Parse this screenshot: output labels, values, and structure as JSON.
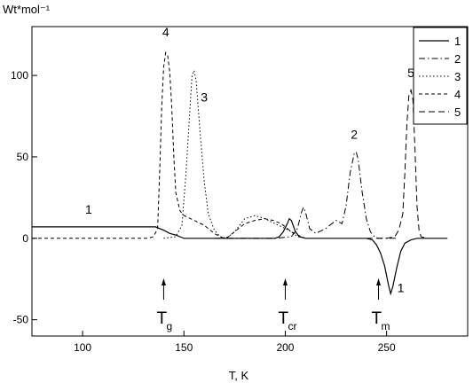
{
  "chart_data": {
    "type": "line",
    "ylabel": "Wt*mol⁻¹",
    "xlabel": "T, K",
    "xlim": [
      75,
      290
    ],
    "ylim": [
      -60,
      130
    ],
    "xticks": [
      100,
      150,
      200,
      250
    ],
    "yticks": [
      -50,
      0,
      50,
      100
    ],
    "legend_position": "top-right",
    "series": [
      {
        "name": "1",
        "style": "solid",
        "points": [
          [
            75,
            7
          ],
          [
            130,
            7
          ],
          [
            136,
            7
          ],
          [
            138,
            6
          ],
          [
            140,
            5
          ],
          [
            143,
            3
          ],
          [
            146,
            2
          ],
          [
            148,
            1
          ],
          [
            150,
            0
          ],
          [
            155,
            0
          ],
          [
            160,
            0
          ],
          [
            180,
            0
          ],
          [
            195,
            0
          ],
          [
            197,
            1
          ],
          [
            199,
            4
          ],
          [
            201,
            9
          ],
          [
            202,
            12
          ],
          [
            203,
            11
          ],
          [
            205,
            4
          ],
          [
            207,
            1
          ],
          [
            210,
            0
          ],
          [
            230,
            0
          ],
          [
            240,
            0
          ],
          [
            243,
            -1
          ],
          [
            245,
            -4
          ],
          [
            247,
            -9
          ],
          [
            249,
            -17
          ],
          [
            251,
            -29
          ],
          [
            252,
            -34
          ],
          [
            253,
            -30
          ],
          [
            255,
            -18
          ],
          [
            257,
            -8
          ],
          [
            259,
            -3
          ],
          [
            262,
            -1
          ],
          [
            265,
            0
          ],
          [
            280,
            0
          ]
        ]
      },
      {
        "name": "2",
        "style": "dashdot",
        "points": [
          [
            165,
            0
          ],
          [
            180,
            0
          ],
          [
            195,
            0
          ],
          [
            203,
            1
          ],
          [
            206,
            6
          ],
          [
            208,
            16
          ],
          [
            209,
            19
          ],
          [
            210,
            16
          ],
          [
            212,
            6
          ],
          [
            215,
            3
          ],
          [
            220,
            6
          ],
          [
            225,
            11
          ],
          [
            228,
            9
          ],
          [
            230,
            20
          ],
          [
            232,
            40
          ],
          [
            234,
            52
          ],
          [
            235,
            53
          ],
          [
            236,
            48
          ],
          [
            238,
            28
          ],
          [
            240,
            12
          ],
          [
            242,
            4
          ],
          [
            244,
            1
          ],
          [
            246,
            0
          ],
          [
            255,
            0
          ]
        ]
      },
      {
        "name": "3",
        "style": "dotted",
        "points": [
          [
            140,
            0
          ],
          [
            146,
            1
          ],
          [
            149,
            8
          ],
          [
            151,
            40
          ],
          [
            153,
            80
          ],
          [
            154,
            100
          ],
          [
            155,
            103
          ],
          [
            156,
            97
          ],
          [
            158,
            65
          ],
          [
            160,
            35
          ],
          [
            162,
            15
          ],
          [
            165,
            5
          ],
          [
            168,
            1
          ],
          [
            171,
            0
          ],
          [
            175,
            4
          ],
          [
            180,
            12
          ],
          [
            185,
            14
          ],
          [
            190,
            12
          ],
          [
            195,
            9
          ],
          [
            200,
            6
          ],
          [
            203,
            4
          ],
          [
            205,
            2
          ],
          [
            208,
            0
          ]
        ]
      },
      {
        "name": "4",
        "style": "dashed",
        "points": [
          [
            75,
            0
          ],
          [
            125,
            0
          ],
          [
            132,
            0
          ],
          [
            135,
            1
          ],
          [
            137,
            6
          ],
          [
            138,
            40
          ],
          [
            139,
            80
          ],
          [
            140,
            105
          ],
          [
            141,
            114
          ],
          [
            142,
            112
          ],
          [
            143,
            102
          ],
          [
            144,
            80
          ],
          [
            145,
            50
          ],
          [
            146,
            28
          ],
          [
            148,
            17
          ],
          [
            150,
            14
          ],
          [
            155,
            11
          ],
          [
            160,
            8
          ],
          [
            165,
            3
          ],
          [
            168,
            1
          ],
          [
            170,
            0
          ],
          [
            172,
            1
          ],
          [
            175,
            4
          ],
          [
            180,
            9
          ],
          [
            185,
            11
          ],
          [
            190,
            12
          ],
          [
            194,
            11
          ],
          [
            198,
            9
          ],
          [
            200,
            7
          ],
          [
            203,
            4
          ],
          [
            206,
            2
          ],
          [
            210,
            0
          ]
        ]
      },
      {
        "name": "5",
        "style": "longdash",
        "points": [
          [
            240,
            0
          ],
          [
            250,
            0
          ],
          [
            254,
            1
          ],
          [
            256,
            5
          ],
          [
            258,
            15
          ],
          [
            259,
            40
          ],
          [
            260,
            70
          ],
          [
            261,
            88
          ],
          [
            262,
            91
          ],
          [
            263,
            85
          ],
          [
            264,
            55
          ],
          [
            265,
            20
          ],
          [
            266,
            5
          ],
          [
            267,
            1
          ],
          [
            270,
            0
          ]
        ]
      }
    ],
    "annotations": [
      {
        "text": "1",
        "x": 103,
        "y": 15
      },
      {
        "text": "4",
        "x": 141,
        "y": 124
      },
      {
        "text": "3",
        "x": 160,
        "y": 84
      },
      {
        "text": "2",
        "x": 234,
        "y": 61
      },
      {
        "text": "5",
        "x": 262,
        "y": 99
      },
      {
        "text": "1",
        "x": 257,
        "y": -33
      }
    ],
    "transition_markers": [
      {
        "symbol": "T",
        "subscript": "g",
        "x": 140
      },
      {
        "symbol": "T",
        "subscript": "cr",
        "x": 200
      },
      {
        "symbol": "T",
        "subscript": "m",
        "x": 246
      }
    ]
  }
}
